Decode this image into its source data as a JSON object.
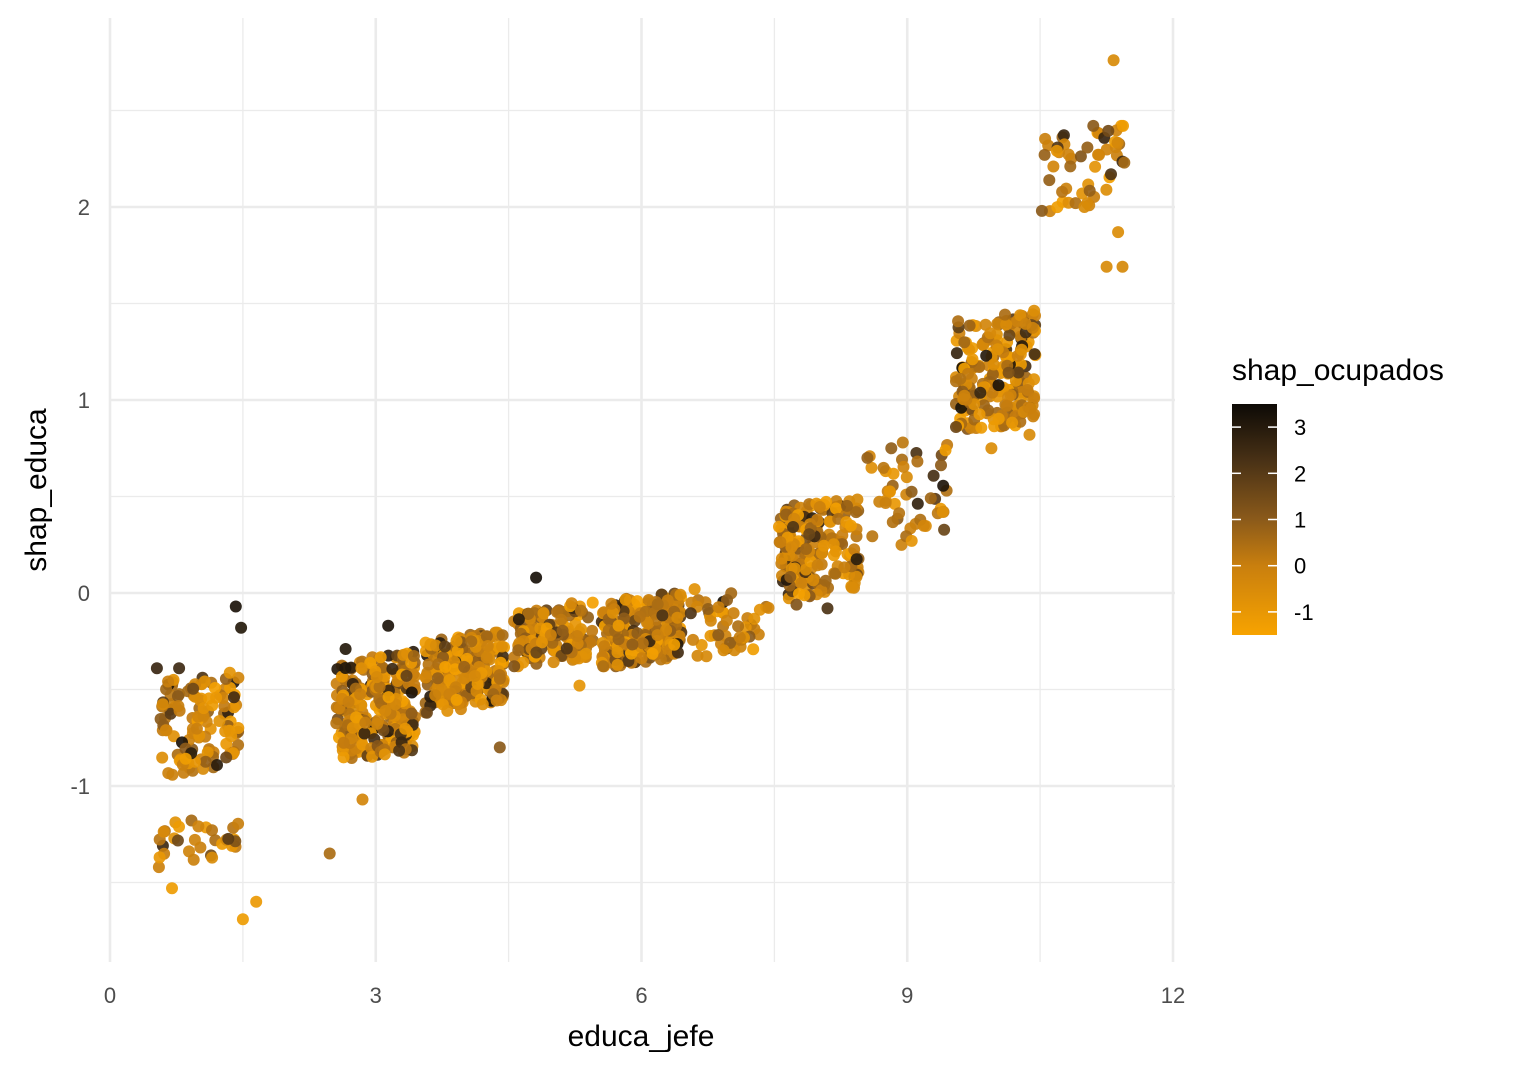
{
  "chart_data": {
    "type": "scatter",
    "xlabel": "educa_jefe",
    "ylabel": "shap_educa",
    "xlim": [
      0,
      12
    ],
    "ylim": [
      -1.9,
      2.95
    ],
    "x_ticks": [
      0,
      3,
      6,
      9,
      12
    ],
    "x_tick_labels": [
      "0",
      "3",
      "6",
      "9",
      "12"
    ],
    "y_ticks": [
      -1,
      0,
      1,
      2
    ],
    "y_tick_labels": [
      "-1",
      "0",
      "1",
      "2"
    ],
    "grid": true,
    "legend": {
      "title": "shap_ocupados",
      "position": "right",
      "type": "colorbar",
      "range": [
        -1.5,
        3.5
      ],
      "ticks": [
        3,
        2,
        1,
        0,
        -1
      ],
      "tick_labels": [
        "3",
        "2",
        "1",
        "0",
        "-1"
      ],
      "color_low": "#F7A300",
      "color_mid": "#8B5A1A",
      "color_high": "#0D0A06"
    },
    "clusters": [
      {
        "x_center": 1.0,
        "x_jitter": 0.45,
        "y_min": -0.95,
        "y_max": -0.4,
        "n": 120
      },
      {
        "x_center": 1.0,
        "x_jitter": 0.45,
        "y_min": -1.42,
        "y_max": -1.15,
        "n": 30
      },
      {
        "x_center": 3.0,
        "x_jitter": 0.45,
        "y_min": -0.88,
        "y_max": -0.3,
        "n": 260
      },
      {
        "x_center": 4.0,
        "x_jitter": 0.45,
        "y_min": -0.62,
        "y_max": -0.2,
        "n": 220
      },
      {
        "x_center": 5.0,
        "x_jitter": 0.45,
        "y_min": -0.38,
        "y_max": -0.05,
        "n": 140
      },
      {
        "x_center": 6.0,
        "x_jitter": 0.45,
        "y_min": -0.38,
        "y_max": 0.0,
        "n": 230
      },
      {
        "x_center": 7.0,
        "x_jitter": 0.45,
        "y_min": -0.33,
        "y_max": 0.02,
        "n": 50
      },
      {
        "x_center": 8.0,
        "x_jitter": 0.45,
        "y_min": -0.05,
        "y_max": 0.5,
        "n": 210
      },
      {
        "x_center": 9.0,
        "x_jitter": 0.45,
        "y_min": 0.22,
        "y_max": 0.78,
        "n": 45
      },
      {
        "x_center": 10.0,
        "x_jitter": 0.45,
        "y_min": 0.82,
        "y_max": 1.47,
        "n": 210
      },
      {
        "x_center": 11.0,
        "x_jitter": 0.45,
        "y_min": 1.97,
        "y_max": 2.42,
        "n": 45
      }
    ],
    "points": [
      {
        "x": 1.42,
        "y": -0.07,
        "v": 3.2
      },
      {
        "x": 1.48,
        "y": -0.18,
        "v": 3.0
      },
      {
        "x": 0.53,
        "y": -0.39,
        "v": 2.6
      },
      {
        "x": 0.78,
        "y": -0.39,
        "v": 2.5
      },
      {
        "x": 1.4,
        "y": -0.54,
        "v": 2.4
      },
      {
        "x": 1.5,
        "y": -1.69,
        "v": -1.2
      },
      {
        "x": 1.65,
        "y": -1.6,
        "v": -1.1
      },
      {
        "x": 0.7,
        "y": -1.53,
        "v": -1.2
      },
      {
        "x": 0.56,
        "y": -1.37,
        "v": -1.0
      },
      {
        "x": 2.48,
        "y": -1.35,
        "v": 0.5
      },
      {
        "x": 2.85,
        "y": -1.07,
        "v": -0.3
      },
      {
        "x": 2.66,
        "y": -0.29,
        "v": 3.0
      },
      {
        "x": 3.14,
        "y": -0.17,
        "v": 3.2
      },
      {
        "x": 4.81,
        "y": 0.08,
        "v": 3.3
      },
      {
        "x": 4.4,
        "y": -0.8,
        "v": 1.0
      },
      {
        "x": 8.1,
        "y": -0.08,
        "v": 2.2
      },
      {
        "x": 7.75,
        "y": -0.06,
        "v": 1.2
      },
      {
        "x": 9.95,
        "y": 0.75,
        "v": -0.6
      },
      {
        "x": 10.38,
        "y": 0.82,
        "v": -0.5
      },
      {
        "x": 9.55,
        "y": 0.86,
        "v": 1.6
      },
      {
        "x": 11.33,
        "y": 2.76,
        "v": -0.5
      },
      {
        "x": 11.38,
        "y": 1.87,
        "v": -0.6
      },
      {
        "x": 11.25,
        "y": 1.69,
        "v": -0.5
      },
      {
        "x": 11.43,
        "y": 1.69,
        "v": -0.4
      },
      {
        "x": 10.55,
        "y": 2.27,
        "v": 0.8
      },
      {
        "x": 10.65,
        "y": 2.21,
        "v": -0.3
      },
      {
        "x": 11.1,
        "y": 2.42,
        "v": 1.0
      },
      {
        "x": 11.3,
        "y": 2.17,
        "v": 2.2
      },
      {
        "x": 11.45,
        "y": 2.23,
        "v": 0.6
      },
      {
        "x": 10.52,
        "y": 1.98,
        "v": 1.0
      },
      {
        "x": 10.9,
        "y": 2.02,
        "v": 0.4
      },
      {
        "x": 11.0,
        "y": 2.0,
        "v": -0.5
      },
      {
        "x": 8.55,
        "y": 0.7,
        "v": 0.8
      },
      {
        "x": 8.82,
        "y": 0.75,
        "v": 0.9
      },
      {
        "x": 8.95,
        "y": 0.78,
        "v": 0.2
      },
      {
        "x": 9.4,
        "y": 0.42,
        "v": -0.7
      },
      {
        "x": 9.05,
        "y": 0.27,
        "v": -0.9
      },
      {
        "x": 5.3,
        "y": -0.48,
        "v": -0.9
      },
      {
        "x": 6.6,
        "y": 0.02,
        "v": -0.8
      }
    ]
  }
}
